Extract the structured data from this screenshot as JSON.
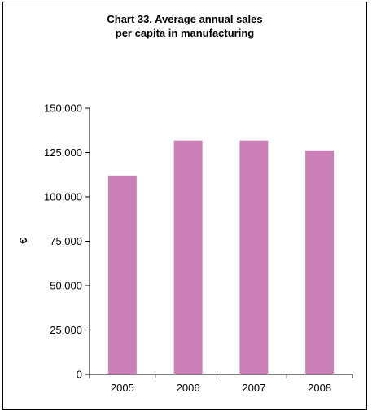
{
  "chart_data": {
    "type": "bar",
    "title_lines": [
      "Chart 33.  Average annual sales",
      "per capita in manufacturing"
    ],
    "title": "Chart 33.  Average annual sales per capita in manufacturing",
    "xlabel": "",
    "ylabel": "€",
    "categories": [
      "2005",
      "2006",
      "2007",
      "2008"
    ],
    "values": [
      112000,
      131800,
      131800,
      126200
    ],
    "ylim": [
      0,
      150000
    ],
    "yticks": [
      0,
      25000,
      50000,
      75000,
      100000,
      125000,
      150000
    ],
    "ytick_labels": [
      "0",
      "25,000",
      "50,000",
      "75,000",
      "100,000",
      "125,000",
      "150,000"
    ],
    "bar_color": "#cc80b8",
    "grid": false,
    "legend": "none"
  }
}
